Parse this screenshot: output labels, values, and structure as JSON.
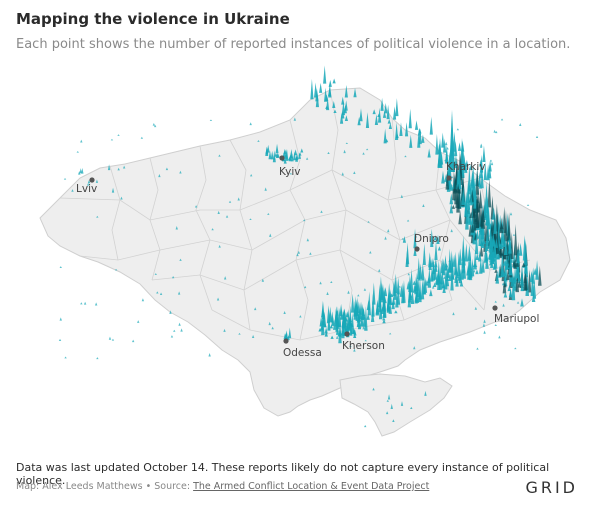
{
  "header": {
    "title": "Mapping the violence in Ukraine",
    "subtitle": "Each point shows the number of reported instances of political violence in a location."
  },
  "map": {
    "country": "Ukraine",
    "land_color": "#eeeeee",
    "border_color": "#cfcfcf",
    "spike_color": "#17a8b8",
    "spike_dark_color": "#0b4f57",
    "cities": [
      {
        "id": "lviv",
        "name": "Lviv"
      },
      {
        "id": "kyiv",
        "name": "Kyiv"
      },
      {
        "id": "kharkiv",
        "name": "Kharkiv"
      },
      {
        "id": "dnipro",
        "name": "Dnipro"
      },
      {
        "id": "mariupol",
        "name": "Mariupol"
      },
      {
        "id": "odessa",
        "name": "Odessa"
      },
      {
        "id": "kherson",
        "name": "Kherson"
      }
    ]
  },
  "footer": {
    "note": "Data was last updated October 14. These reports likely do not capture every instance of political violence.",
    "credit_prefix": "Map: Alex Leeds Matthews • Source: ",
    "source_link": "The Armed Conflict Location & Event Data Project",
    "brand": "GRID"
  }
}
